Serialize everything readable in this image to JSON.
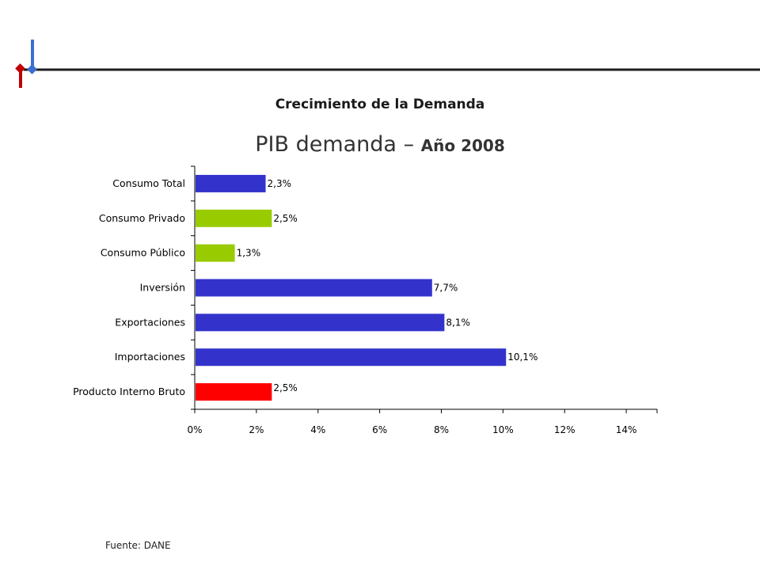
{
  "header": {
    "subtitle": "Crecimiento de la Demanda"
  },
  "chart_title": {
    "main": "PIB demanda",
    "dash": "–",
    "year": "Año 2008"
  },
  "source": "Fuente: DANE",
  "colors": {
    "rule": "#1c1c1c",
    "logo_red": "#c00000",
    "logo_blue": "#3a6fd1",
    "blue": "#3333cc",
    "green": "#99cc00",
    "red": "#ff0000"
  },
  "chart_data": {
    "type": "bar",
    "orientation": "horizontal",
    "categories": [
      "Consumo Total",
      "Consumo Privado",
      "Consumo Público",
      "Inversión",
      "Exportaciones",
      "Importaciones",
      "Producto Interno Bruto"
    ],
    "values": [
      2.3,
      2.5,
      1.3,
      7.7,
      8.1,
      10.1,
      2.5
    ],
    "data_labels": [
      "2,3%",
      "2,5%",
      "1,3%",
      "7,7%",
      "8,1%",
      "10,1%",
      "2,5%"
    ],
    "bar_colors": [
      "blue",
      "green",
      "green",
      "blue",
      "blue",
      "blue",
      "red"
    ],
    "xlim": [
      0,
      15
    ],
    "x_ticks": [
      0,
      2,
      4,
      6,
      8,
      10,
      12,
      14
    ],
    "x_tick_labels": [
      "0%",
      "2%",
      "4%",
      "6%",
      "8%",
      "10%",
      "12%",
      "14%"
    ],
    "grid": false,
    "legend": "none"
  }
}
